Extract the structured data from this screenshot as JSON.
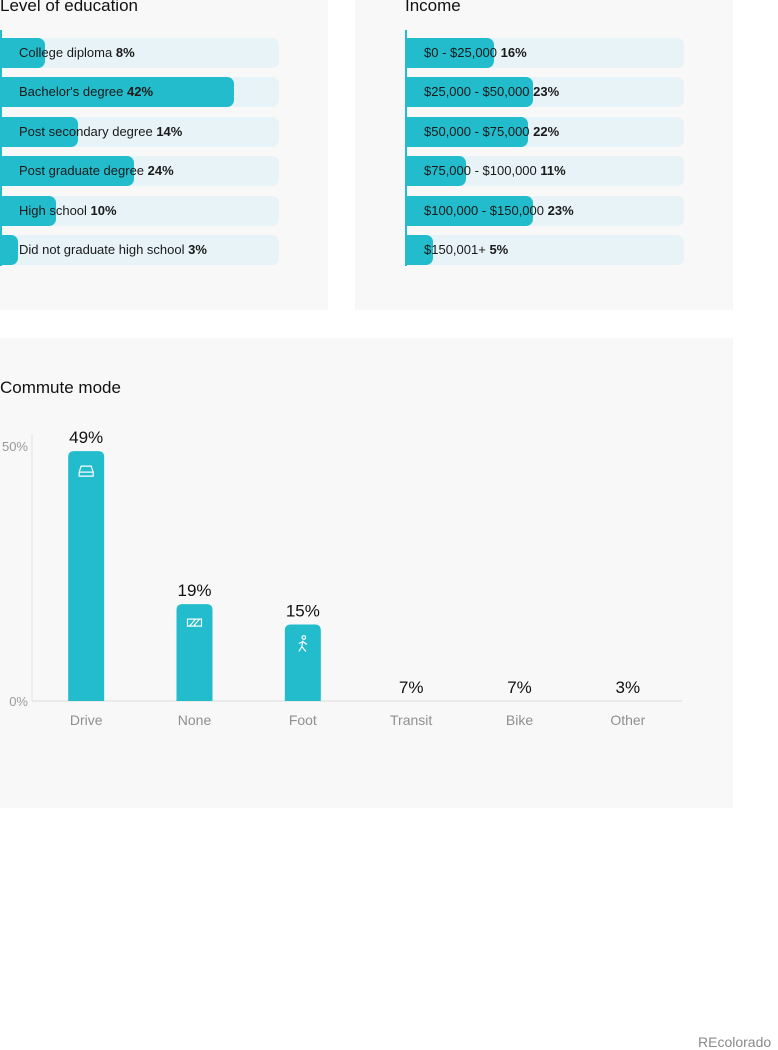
{
  "education": {
    "title": "Level of education",
    "items": [
      {
        "label": "College diploma",
        "value_label": "8%",
        "value": 8
      },
      {
        "label": "Bachelor's degree",
        "value_label": "42%",
        "value": 42
      },
      {
        "label": "Post secondary degree",
        "value_label": "14%",
        "value": 14
      },
      {
        "label": "Post graduate degree",
        "value_label": "24%",
        "value": 24
      },
      {
        "label": "High school",
        "value_label": "10%",
        "value": 10
      },
      {
        "label": "Did not graduate high school",
        "value_label": "3%",
        "value": 3
      }
    ]
  },
  "income": {
    "title": "Income",
    "items": [
      {
        "label": "$0 - $25,000",
        "value_label": "16%",
        "value": 16
      },
      {
        "label": "$25,000 - $50,000",
        "value_label": "23%",
        "value": 23
      },
      {
        "label": "$50,000 - $75,000",
        "value_label": "22%",
        "value": 22
      },
      {
        "label": "$75,000 - $100,000",
        "value_label": "11%",
        "value": 11
      },
      {
        "label": "$100,000 - $150,000",
        "value_label": "23%",
        "value": 23
      },
      {
        "label": "$150,001+",
        "value_label": "5%",
        "value": 5
      }
    ]
  },
  "commute": {
    "title": "Commute mode"
  },
  "colors": {
    "accent": "#22bccc",
    "track": "#e7f3f7"
  },
  "chart_data": {
    "type": "bar",
    "title": "Commute mode",
    "categories": [
      "Drive",
      "None",
      "Foot",
      "Transit",
      "Bike",
      "Other"
    ],
    "values": [
      49,
      19,
      15,
      7,
      7,
      3
    ],
    "value_labels": [
      "49%",
      "19%",
      "15%",
      "7%",
      "7%",
      "3%"
    ],
    "icons": [
      "car-icon",
      "no-commute-icon",
      "walking-icon",
      null,
      null,
      null
    ],
    "ylim": [
      0,
      50
    ],
    "yticks": [
      "0%",
      "50%"
    ]
  },
  "footer": {
    "text": "REcolorado"
  }
}
